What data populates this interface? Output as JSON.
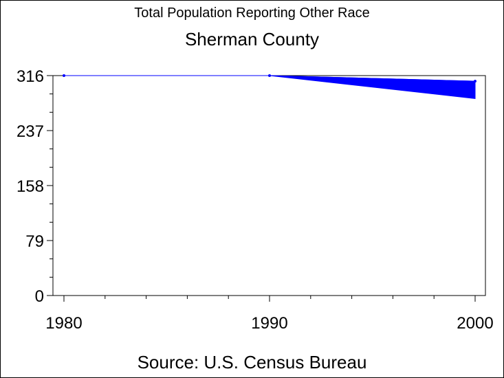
{
  "chart_data": {
    "type": "line",
    "title": "Total Population Reporting Other Race",
    "subtitle": "Sherman County",
    "source": "Source: U.S. Census Bureau",
    "x": [
      1980,
      1990,
      2000
    ],
    "x_ticks": [
      "1980",
      "1990",
      "2000"
    ],
    "xlim": [
      1980,
      2000
    ],
    "y_ticks": [
      "0",
      "79",
      "158",
      "237",
      "316"
    ],
    "ylim": [
      0,
      316
    ],
    "series": [
      {
        "values": [
          316,
          316,
          308
        ],
        "color": "#0000ff"
      }
    ],
    "band": {
      "x_start": 1990,
      "x_end": 2000,
      "upper_end": 308,
      "lower_end": 283,
      "start": 316,
      "color": "#0000ff"
    },
    "grid": false
  }
}
